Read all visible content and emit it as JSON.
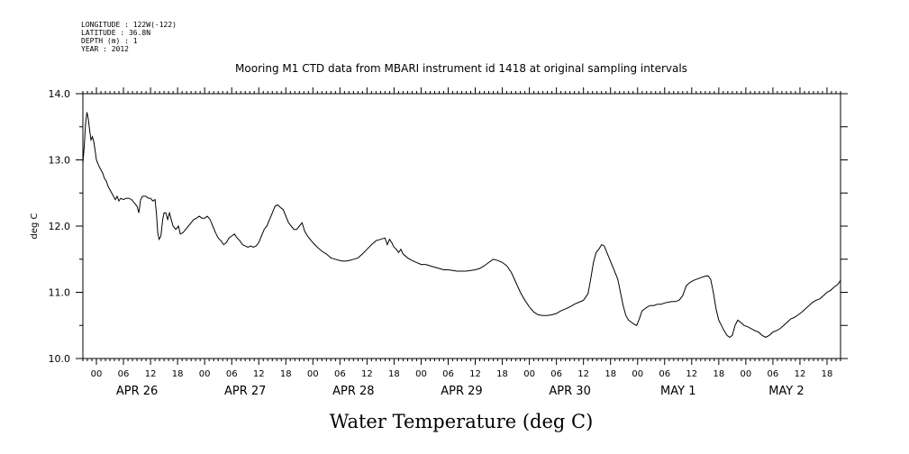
{
  "meta_lines": [
    "LONGITUDE : 122W(-122)",
    "LATITUDE : 36.8N",
    "DEPTH (m) : 1",
    "YEAR : 2012"
  ],
  "chart_data": {
    "type": "line",
    "title": "Mooring M1 CTD data from MBARI instrument id 1418 at original sampling intervals",
    "xlabel": "Water Temperature (deg C)",
    "ylabel": "deg C",
    "ylim": [
      10.0,
      14.0
    ],
    "yticks": [
      "10.0",
      "11.0",
      "12.0",
      "13.0",
      "14.0"
    ],
    "x_unit": "hours since 2012-04-25 21:00",
    "xlim": [
      0,
      168
    ],
    "hour_labels": [
      "00",
      "06",
      "12",
      "18"
    ],
    "day_labels": [
      "APR 26",
      "APR 27",
      "APR 28",
      "APR 29",
      "APR 30",
      "MAY  1",
      "MAY  2"
    ],
    "grid": false,
    "series": [
      {
        "name": "",
        "points": [
          [
            0.0,
            12.95
          ],
          [
            0.3,
            13.2
          ],
          [
            0.6,
            13.55
          ],
          [
            0.9,
            13.72
          ],
          [
            1.2,
            13.62
          ],
          [
            1.5,
            13.45
          ],
          [
            1.8,
            13.3
          ],
          [
            2.1,
            13.35
          ],
          [
            2.4,
            13.28
          ],
          [
            2.7,
            13.15
          ],
          [
            3.0,
            13.0
          ],
          [
            3.3,
            12.95
          ],
          [
            3.6,
            12.9
          ],
          [
            4.0,
            12.85
          ],
          [
            4.4,
            12.8
          ],
          [
            4.8,
            12.72
          ],
          [
            5.2,
            12.68
          ],
          [
            5.6,
            12.6
          ],
          [
            6.0,
            12.55
          ],
          [
            6.4,
            12.5
          ],
          [
            6.8,
            12.45
          ],
          [
            7.2,
            12.4
          ],
          [
            7.6,
            12.45
          ],
          [
            8.0,
            12.38
          ],
          [
            8.4,
            12.42
          ],
          [
            9.0,
            12.4
          ],
          [
            9.6,
            12.42
          ],
          [
            10.2,
            12.42
          ],
          [
            10.8,
            12.4
          ],
          [
            11.4,
            12.35
          ],
          [
            12.0,
            12.3
          ],
          [
            12.4,
            12.2
          ],
          [
            12.8,
            12.4
          ],
          [
            13.2,
            12.45
          ],
          [
            14.0,
            12.45
          ],
          [
            14.5,
            12.42
          ],
          [
            15.0,
            12.42
          ],
          [
            15.5,
            12.38
          ],
          [
            16.0,
            12.4
          ],
          [
            16.3,
            12.2
          ],
          [
            16.6,
            11.9
          ],
          [
            16.9,
            11.8
          ],
          [
            17.3,
            11.85
          ],
          [
            17.7,
            12.1
          ],
          [
            18.0,
            12.2
          ],
          [
            18.4,
            12.2
          ],
          [
            18.8,
            12.1
          ],
          [
            19.2,
            12.2
          ],
          [
            19.6,
            12.1
          ],
          [
            20.0,
            12.0
          ],
          [
            20.6,
            11.95
          ],
          [
            21.2,
            12.0
          ],
          [
            21.6,
            11.88
          ],
          [
            22.2,
            11.9
          ],
          [
            22.8,
            11.95
          ],
          [
            23.4,
            12.0
          ],
          [
            24.0,
            12.05
          ],
          [
            24.6,
            12.1
          ],
          [
            25.2,
            12.12
          ],
          [
            25.8,
            12.15
          ],
          [
            26.4,
            12.12
          ],
          [
            27.0,
            12.12
          ],
          [
            27.6,
            12.15
          ],
          [
            28.2,
            12.1
          ],
          [
            28.8,
            12.0
          ],
          [
            29.4,
            11.9
          ],
          [
            30.0,
            11.82
          ],
          [
            30.6,
            11.78
          ],
          [
            31.2,
            11.72
          ],
          [
            31.8,
            11.75
          ],
          [
            32.4,
            11.82
          ],
          [
            33.0,
            11.85
          ],
          [
            33.6,
            11.88
          ],
          [
            34.2,
            11.82
          ],
          [
            34.8,
            11.78
          ],
          [
            35.4,
            11.72
          ],
          [
            36.0,
            11.7
          ],
          [
            36.6,
            11.68
          ],
          [
            37.2,
            11.7
          ],
          [
            37.8,
            11.68
          ],
          [
            38.4,
            11.7
          ],
          [
            39.0,
            11.75
          ],
          [
            39.6,
            11.85
          ],
          [
            40.2,
            11.95
          ],
          [
            40.8,
            12.0
          ],
          [
            41.4,
            12.1
          ],
          [
            42.0,
            12.2
          ],
          [
            42.6,
            12.3
          ],
          [
            43.2,
            12.32
          ],
          [
            43.8,
            12.28
          ],
          [
            44.4,
            12.25
          ],
          [
            45.0,
            12.15
          ],
          [
            45.6,
            12.05
          ],
          [
            46.2,
            12.0
          ],
          [
            46.8,
            11.95
          ],
          [
            47.4,
            11.95
          ],
          [
            48.0,
            12.0
          ],
          [
            48.6,
            12.05
          ],
          [
            49.2,
            11.92
          ],
          [
            49.8,
            11.85
          ],
          [
            50.4,
            11.8
          ],
          [
            51.0,
            11.75
          ],
          [
            52.0,
            11.68
          ],
          [
            53.0,
            11.62
          ],
          [
            54.0,
            11.58
          ],
          [
            55.0,
            11.52
          ],
          [
            56.0,
            11.5
          ],
          [
            57.0,
            11.48
          ],
          [
            58.0,
            11.47
          ],
          [
            59.0,
            11.48
          ],
          [
            60.0,
            11.5
          ],
          [
            61.0,
            11.52
          ],
          [
            62.0,
            11.58
          ],
          [
            63.0,
            11.65
          ],
          [
            64.0,
            11.72
          ],
          [
            65.0,
            11.78
          ],
          [
            66.0,
            11.8
          ],
          [
            67.0,
            11.82
          ],
          [
            67.5,
            11.72
          ],
          [
            68.0,
            11.8
          ],
          [
            68.5,
            11.75
          ],
          [
            69.0,
            11.68
          ],
          [
            69.5,
            11.65
          ],
          [
            70.0,
            11.6
          ],
          [
            70.5,
            11.65
          ],
          [
            71.0,
            11.58
          ],
          [
            72.0,
            11.52
          ],
          [
            73.0,
            11.48
          ],
          [
            74.0,
            11.45
          ],
          [
            75.0,
            11.42
          ],
          [
            76.0,
            11.42
          ],
          [
            77.0,
            11.4
          ],
          [
            78.0,
            11.38
          ],
          [
            79.0,
            11.36
          ],
          [
            80.0,
            11.34
          ],
          [
            81.0,
            11.34
          ],
          [
            82.0,
            11.33
          ],
          [
            83.0,
            11.32
          ],
          [
            84.0,
            11.32
          ],
          [
            85.0,
            11.32
          ],
          [
            86.0,
            11.33
          ],
          [
            87.0,
            11.34
          ],
          [
            88.0,
            11.36
          ],
          [
            89.0,
            11.4
          ],
          [
            90.0,
            11.45
          ],
          [
            91.0,
            11.5
          ],
          [
            92.0,
            11.48
          ],
          [
            93.0,
            11.45
          ],
          [
            94.0,
            11.4
          ],
          [
            95.0,
            11.3
          ],
          [
            96.0,
            11.15
          ],
          [
            97.0,
            11.0
          ],
          [
            98.0,
            10.88
          ],
          [
            99.0,
            10.78
          ],
          [
            100.0,
            10.7
          ],
          [
            101.0,
            10.66
          ],
          [
            102.0,
            10.65
          ],
          [
            103.0,
            10.65
          ],
          [
            104.0,
            10.66
          ],
          [
            105.0,
            10.68
          ],
          [
            106.0,
            10.72
          ],
          [
            107.0,
            10.75
          ],
          [
            108.0,
            10.78
          ],
          [
            109.0,
            10.82
          ],
          [
            110.0,
            10.85
          ],
          [
            111.0,
            10.88
          ],
          [
            112.0,
            10.98
          ],
          [
            112.6,
            11.2
          ],
          [
            113.2,
            11.45
          ],
          [
            113.8,
            11.6
          ],
          [
            114.4,
            11.65
          ],
          [
            115.0,
            11.72
          ],
          [
            115.6,
            11.7
          ],
          [
            116.2,
            11.6
          ],
          [
            116.8,
            11.5
          ],
          [
            117.4,
            11.4
          ],
          [
            118.0,
            11.3
          ],
          [
            118.6,
            11.2
          ],
          [
            119.2,
            11.0
          ],
          [
            119.8,
            10.8
          ],
          [
            120.4,
            10.65
          ],
          [
            121.0,
            10.58
          ],
          [
            121.6,
            10.55
          ],
          [
            122.2,
            10.52
          ],
          [
            122.8,
            10.5
          ],
          [
            123.4,
            10.6
          ],
          [
            124.0,
            10.72
          ],
          [
            124.6,
            10.75
          ],
          [
            125.2,
            10.78
          ],
          [
            125.8,
            10.8
          ],
          [
            126.6,
            10.8
          ],
          [
            127.4,
            10.82
          ],
          [
            128.2,
            10.82
          ],
          [
            129.0,
            10.84
          ],
          [
            129.8,
            10.85
          ],
          [
            130.6,
            10.86
          ],
          [
            131.4,
            10.86
          ],
          [
            132.2,
            10.88
          ],
          [
            133.0,
            10.95
          ],
          [
            133.8,
            11.1
          ],
          [
            134.6,
            11.15
          ],
          [
            135.4,
            11.18
          ],
          [
            136.2,
            11.2
          ],
          [
            137.0,
            11.22
          ],
          [
            137.8,
            11.24
          ],
          [
            138.6,
            11.25
          ],
          [
            139.2,
            11.2
          ],
          [
            139.8,
            11.0
          ],
          [
            140.4,
            10.75
          ],
          [
            141.0,
            10.58
          ],
          [
            141.6,
            10.5
          ],
          [
            142.2,
            10.42
          ],
          [
            142.8,
            10.35
          ],
          [
            143.4,
            10.32
          ],
          [
            144.0,
            10.35
          ],
          [
            144.6,
            10.5
          ],
          [
            145.2,
            10.58
          ],
          [
            145.8,
            10.55
          ],
          [
            146.6,
            10.5
          ],
          [
            147.4,
            10.48
          ],
          [
            148.2,
            10.45
          ],
          [
            149.0,
            10.42
          ],
          [
            149.8,
            10.4
          ],
          [
            150.6,
            10.35
          ],
          [
            151.4,
            10.32
          ],
          [
            152.2,
            10.35
          ],
          [
            153.0,
            10.4
          ],
          [
            153.8,
            10.42
          ],
          [
            154.6,
            10.45
          ],
          [
            155.4,
            10.5
          ],
          [
            156.2,
            10.55
          ],
          [
            157.0,
            10.6
          ],
          [
            157.8,
            10.62
          ],
          [
            158.6,
            10.66
          ],
          [
            159.4,
            10.7
          ],
          [
            160.2,
            10.75
          ],
          [
            161.0,
            10.8
          ],
          [
            161.8,
            10.85
          ],
          [
            162.6,
            10.88
          ],
          [
            163.4,
            10.9
          ],
          [
            164.2,
            10.95
          ],
          [
            165.0,
            11.0
          ],
          [
            165.8,
            11.03
          ],
          [
            166.6,
            11.08
          ],
          [
            167.4,
            11.12
          ],
          [
            168.0,
            11.18
          ]
        ]
      }
    ]
  }
}
